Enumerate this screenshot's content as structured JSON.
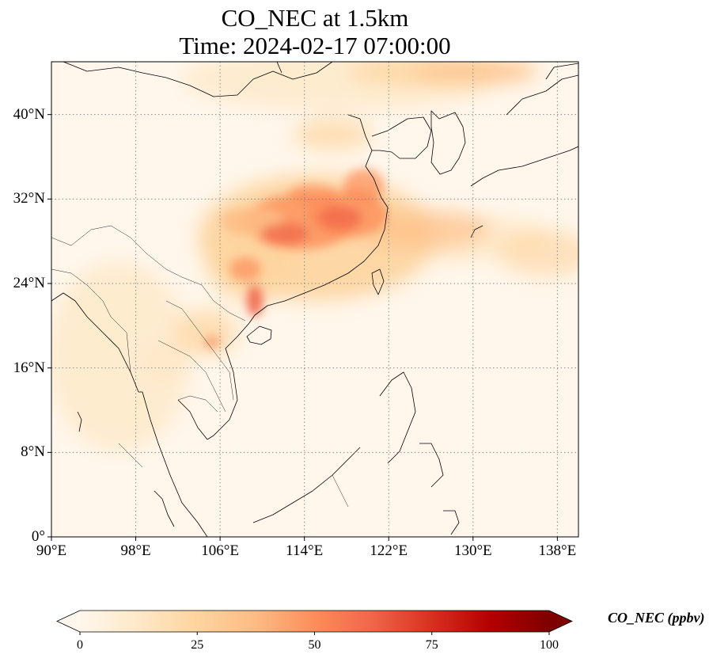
{
  "title": {
    "line1": "CO_NEC at 1.5km",
    "line2": "Time: 2024-02-17 07:00:00"
  },
  "map": {
    "lon_range": [
      90,
      140
    ],
    "lat_range": [
      0,
      45
    ],
    "lon_ticks": [
      {
        "value": 90,
        "label": "90°E"
      },
      {
        "value": 98,
        "label": "98°E"
      },
      {
        "value": 106,
        "label": "106°E"
      },
      {
        "value": 114,
        "label": "114°E"
      },
      {
        "value": 122,
        "label": "122°E"
      },
      {
        "value": 130,
        "label": "130°E"
      },
      {
        "value": 138,
        "label": "138°E"
      }
    ],
    "lat_ticks": [
      {
        "value": 0,
        "label": "0°"
      },
      {
        "value": 8,
        "label": "8°N"
      },
      {
        "value": 16,
        "label": "16°N"
      },
      {
        "value": 24,
        "label": "24°N"
      },
      {
        "value": 32,
        "label": "32°N"
      },
      {
        "value": 40,
        "label": "40°N"
      }
    ],
    "gridlines": true,
    "colormap": "OrRd"
  },
  "colorbar": {
    "label": "CO_NEC (ppbv)",
    "min": 0,
    "max": 100,
    "extend": "both",
    "ticks": [
      {
        "value": 0,
        "label": "0"
      },
      {
        "value": 25,
        "label": "25"
      },
      {
        "value": 50,
        "label": "50"
      },
      {
        "value": 75,
        "label": "75"
      },
      {
        "value": 100,
        "label": "100"
      }
    ],
    "colors": [
      "#fff7ec",
      "#fee8c8",
      "#fdd49e",
      "#fdbb84",
      "#fc8d59",
      "#ef6548",
      "#d7301f",
      "#b30000",
      "#7f0000"
    ]
  }
}
